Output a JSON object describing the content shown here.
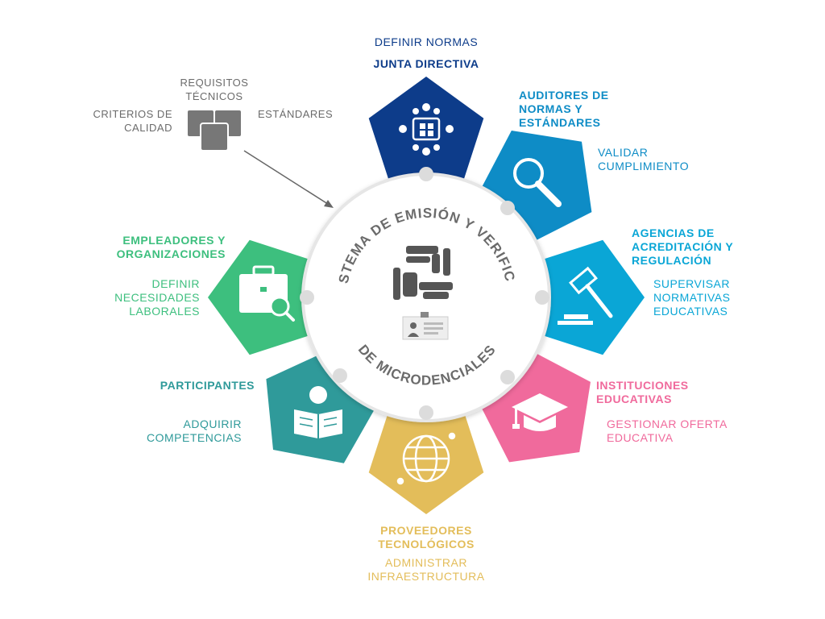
{
  "center_title": "ECOSISTEMA DE EMISIÓN Y VERIFICACIÓN DE MICRODENCIALES",
  "colors": {
    "junta": "#0d3c8a",
    "auditores": "#0e8cc6",
    "agencias": "#0aa6d6",
    "instituciones": "#f06a9c",
    "proveedores": "#e3bd5a",
    "participantes": "#2f9a9a",
    "empleadores": "#3dbf7e",
    "connector": "#dcdcdc",
    "center_text": "#6b6b6b"
  },
  "standards_group": {
    "requisitos": "REQUISITOS\nTÉCNICOS",
    "criterios": "CRITERIOS DE\nCALIDAD",
    "estandares": "ESTÁNDARES"
  },
  "actors": {
    "junta": {
      "title": "JUNTA DIRECTIVA",
      "role": "DEFINIR NORMAS",
      "icon": "meeting-table-icon"
    },
    "auditores": {
      "title": "AUDITORES DE\nNORMAS Y\nESTÁNDARES",
      "role": "VALIDAR\nCUMPLIMIENTO",
      "icon": "magnifier-icon"
    },
    "agencias": {
      "title": "AGENCIAS DE\nACREDITACIÓN Y\nREGULACIÓN",
      "role": "SUPERVISAR\nNORMATIVAS\nEDUCATIVAS",
      "icon": "gavel-icon"
    },
    "instituciones": {
      "title": "INSTITUCIONES\nEDUCATIVAS",
      "role": "GESTIONAR OFERTA\nEDUCATIVA",
      "icon": "graduation-cap-icon"
    },
    "proveedores": {
      "title": "PROVEEDORES\nTECNOLÓGICOS",
      "role": "ADMINISTRAR\nINFRAESTRUCTURA",
      "icon": "globe-network-icon"
    },
    "participantes": {
      "title": "PARTICIPANTES",
      "role": "ADQUIRIR\nCOMPETENCIAS",
      "icon": "reader-icon"
    },
    "empleadores": {
      "title": "EMPLEADORES Y\nORGANIZACIONES",
      "role": "DEFINIR\nNECESIDADES\nLABORALES",
      "icon": "briefcase-search-icon"
    }
  }
}
